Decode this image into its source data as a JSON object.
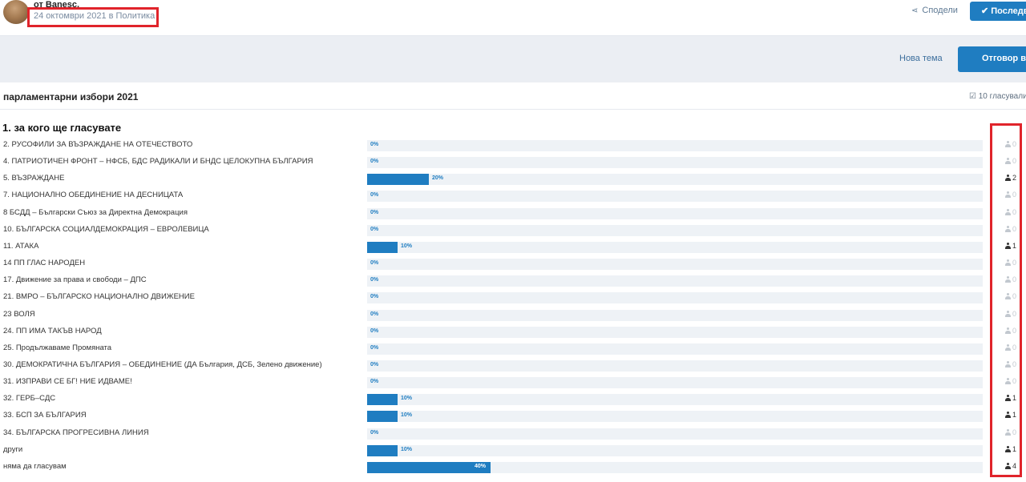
{
  "header": {
    "author": "от Banesc,",
    "meta": "24 октомври 2021 в Политика",
    "share_label": "Сподели",
    "last_button": "Последва"
  },
  "actions": {
    "new_topic": "Нова тема",
    "reply": "Отговор в т"
  },
  "poll": {
    "title": "парламентарни избори 2021",
    "voted": "10 гласували",
    "question": "1. за кого ще гласувате",
    "options": [
      {
        "label": "2. РУСОФИЛИ ЗА ВЪЗРАЖДАНЕ НА ОТЕЧЕСТВОТО",
        "percent": 0,
        "percent_text": "0%",
        "votes": "0"
      },
      {
        "label": "4. ПАТРИОТИЧЕН ФРОНТ – НФСБ, БДС РАДИКАЛИ И БНДС ЦЕЛОКУПНА БЪЛГАРИЯ",
        "percent": 0,
        "percent_text": "0%",
        "votes": "0"
      },
      {
        "label": "5. ВЪЗРАЖДАНЕ",
        "percent": 20,
        "percent_text": "20%",
        "votes": "2"
      },
      {
        "label": "7. НАЦИОНАЛНО ОБЕДИНЕНИЕ НА ДЕСНИЦАТА",
        "percent": 0,
        "percent_text": "0%",
        "votes": "0"
      },
      {
        "label": "8 БСДД – Български Съюз за Директна Демокрация",
        "percent": 0,
        "percent_text": "0%",
        "votes": "0"
      },
      {
        "label": "10. БЪЛГАРСКА СОЦИАЛДЕМОКРАЦИЯ – ЕВРОЛЕВИЦА",
        "percent": 0,
        "percent_text": "0%",
        "votes": "0"
      },
      {
        "label": "11. АТАКА",
        "percent": 10,
        "percent_text": "10%",
        "votes": "1"
      },
      {
        "label": "14 ПП ГЛАС НАРОДЕН",
        "percent": 0,
        "percent_text": "0%",
        "votes": "0"
      },
      {
        "label": "17. Движение за права и свободи – ДПС",
        "percent": 0,
        "percent_text": "0%",
        "votes": "0"
      },
      {
        "label": "21. ВМРО – БЪЛГАРСКО НАЦИОНАЛНО ДВИЖЕНИЕ",
        "percent": 0,
        "percent_text": "0%",
        "votes": "0"
      },
      {
        "label": "23 ВОЛЯ",
        "percent": 0,
        "percent_text": "0%",
        "votes": "0"
      },
      {
        "label": "24. ПП ИМА ТАКЪВ НАРОД",
        "percent": 0,
        "percent_text": "0%",
        "votes": "0"
      },
      {
        "label": "25. Продължаваме Промяната",
        "percent": 0,
        "percent_text": "0%",
        "votes": "0"
      },
      {
        "label": "30. ДЕМОКРАТИЧНА БЪЛГАРИЯ – ОБЕДИНЕНИЕ (ДА България, ДСБ, Зелено движение)",
        "percent": 0,
        "percent_text": "0%",
        "votes": "0"
      },
      {
        "label": "31. ИЗПРАВИ СЕ БГ! НИЕ ИДВАМЕ!",
        "percent": 0,
        "percent_text": "0%",
        "votes": "0"
      },
      {
        "label": "32. ГЕРБ–СДС",
        "percent": 10,
        "percent_text": "10%",
        "votes": "1"
      },
      {
        "label": "33. БСП ЗА БЪЛГАРИЯ",
        "percent": 10,
        "percent_text": "10%",
        "votes": "1"
      },
      {
        "label": "34. БЪЛГАРСКА ПРОГРЕСИВНА ЛИНИЯ",
        "percent": 0,
        "percent_text": "0%",
        "votes": "0"
      },
      {
        "label": "други",
        "percent": 10,
        "percent_text": "10%",
        "votes": "1"
      },
      {
        "label": "няма да гласувам",
        "percent": 40,
        "percent_text": "40%",
        "votes": "4"
      }
    ]
  },
  "colors": {
    "accent": "#1f7dc1",
    "highlight": "#e0242b",
    "track": "#eef2f6"
  },
  "icons": {
    "share": "share-icon",
    "check": "check-icon",
    "poll": "checkbox-icon",
    "voter": "person-icon"
  }
}
